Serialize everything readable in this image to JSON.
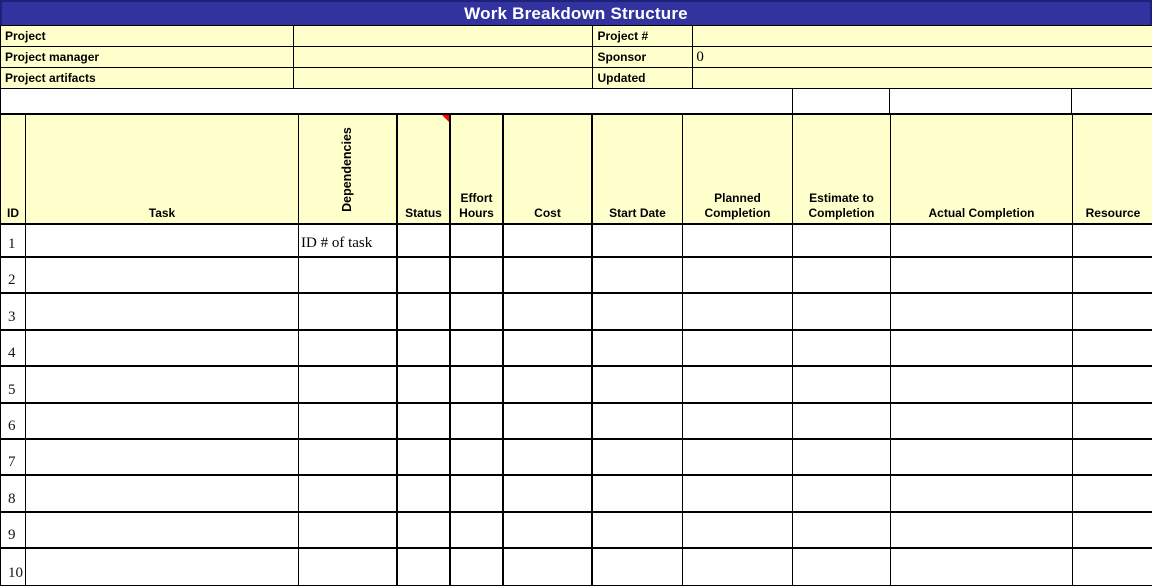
{
  "title": "Work Breakdown Structure",
  "colors": {
    "title_bar_bg": "#3333A0",
    "title_bar_border": "#20207A",
    "title_text": "#FFFFFF",
    "panel_fill": "#FFFFCC",
    "grid_border": "#000000",
    "comment_indicator": "#FF0000"
  },
  "info_panel": {
    "left": [
      {
        "label": "Project",
        "value": ""
      },
      {
        "label": "Project manager",
        "value": ""
      },
      {
        "label": "Project artifacts",
        "value": ""
      }
    ],
    "right": [
      {
        "label": "Project #",
        "value": ""
      },
      {
        "label": "Sponsor",
        "value": "0"
      },
      {
        "label": "Updated",
        "value": ""
      }
    ]
  },
  "table": {
    "columns": [
      {
        "label": "ID"
      },
      {
        "label": "Task"
      },
      {
        "label": "Dependencies",
        "orientation": "vertical"
      },
      {
        "label": "Status",
        "comment_indicator": true
      },
      {
        "label": "Effort Hours"
      },
      {
        "label": "Cost"
      },
      {
        "label": "Start Date"
      },
      {
        "label": "Planned Completion"
      },
      {
        "label": "Estimate to Completion"
      },
      {
        "label": "Actual Completion"
      },
      {
        "label": "Resource"
      }
    ],
    "rows": [
      {
        "id": "1",
        "task": "",
        "dependencies": "ID # of task",
        "status": "",
        "effort_hours": "",
        "cost": "",
        "start_date": "",
        "planned_completion": "",
        "estimate_to_completion": "",
        "actual_completion": "",
        "resource": ""
      },
      {
        "id": "2"
      },
      {
        "id": "3"
      },
      {
        "id": "4"
      },
      {
        "id": "5"
      },
      {
        "id": "6"
      },
      {
        "id": "7"
      },
      {
        "id": "8"
      },
      {
        "id": "9"
      },
      {
        "id": "10"
      }
    ]
  }
}
